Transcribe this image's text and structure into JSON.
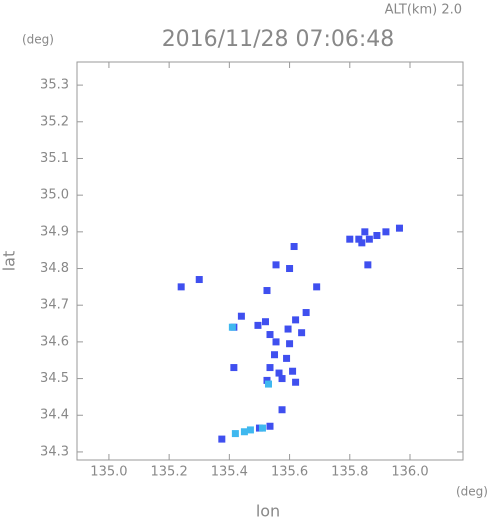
{
  "chart_data": {
    "type": "scatter",
    "title": "2016/11/28 07:06:48",
    "subtitle": "ALT(km) 2.0",
    "y_unit": "(deg)",
    "x_unit": "(deg)",
    "x_label": "lon",
    "y_label": "lat",
    "xlim": [
      134.894,
      136.176
    ],
    "ylim": [
      34.278,
      35.363
    ],
    "xticks": [
      {
        "value": 135.0,
        "label": "135.0"
      },
      {
        "value": 135.2,
        "label": "135.2"
      },
      {
        "value": 135.4,
        "label": "135.4"
      },
      {
        "value": 135.6,
        "label": "135.6"
      },
      {
        "value": 135.8,
        "label": "135.8"
      },
      {
        "value": 136.0,
        "label": "136.0"
      }
    ],
    "yticks": [
      {
        "value": 34.3,
        "label": "34.3"
      },
      34.4,
      34.5,
      34.6,
      34.7,
      34.8,
      34.9,
      {
        "value": 35.0,
        "label": "35.0"
      },
      35.1,
      35.2,
      35.3
    ],
    "series": [
      {
        "color": "#3f4fef",
        "x": [
          135.24,
          135.3,
          135.525,
          135.615,
          135.555,
          135.6,
          135.69,
          135.8,
          135.83,
          135.84,
          135.85,
          135.865,
          135.89,
          135.965,
          135.86,
          135.92,
          135.44,
          135.415,
          135.495,
          135.52,
          135.535,
          135.595,
          135.62,
          135.655,
          135.64,
          135.555,
          135.6,
          135.55,
          135.59,
          135.535,
          135.565,
          135.61,
          135.525,
          135.575,
          135.62,
          135.415,
          135.575,
          135.375,
          135.5,
          135.535
        ],
        "y": [
          34.75,
          34.77,
          34.74,
          34.86,
          34.81,
          34.8,
          34.75,
          34.88,
          34.88,
          34.87,
          34.9,
          34.88,
          34.89,
          34.91,
          34.81,
          34.9,
          34.67,
          34.64,
          34.645,
          34.655,
          34.62,
          34.635,
          34.66,
          34.68,
          34.625,
          34.6,
          34.595,
          34.565,
          34.555,
          34.53,
          34.515,
          34.52,
          34.495,
          34.5,
          34.49,
          34.53,
          34.415,
          34.335,
          34.365,
          34.37
        ]
      },
      {
        "color": "#3fb8ef",
        "x": [
          135.42,
          135.45,
          135.47,
          135.51,
          135.41,
          135.53
        ],
        "y": [
          34.35,
          34.355,
          34.36,
          34.365,
          34.64,
          34.485
        ]
      }
    ]
  }
}
